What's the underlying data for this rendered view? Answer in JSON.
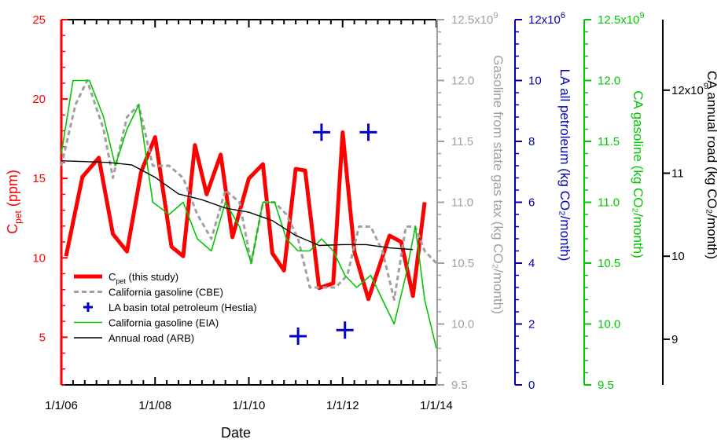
{
  "chart_data": {
    "type": "line",
    "xlabel": "Date",
    "x_ticks": [
      "1/1/06",
      "1/1/08",
      "1/1/10",
      "1/1/12",
      "1/1/14"
    ],
    "x_range": [
      2006.0,
      2014.0
    ],
    "axes": [
      {
        "id": "cpet",
        "label": "C",
        "label_sub": "pet",
        "label_suffix": " (ppm)",
        "color": "#ff0000",
        "range": [
          2.0,
          25.0
        ],
        "ticks": [
          "5",
          "10",
          "15",
          "20",
          "25"
        ],
        "tick_values": [
          5,
          10,
          15,
          20,
          25
        ]
      },
      {
        "id": "gas_tax",
        "label": "Gasoline from state gas tax (kg CO₂/month)",
        "color": "#a0a0a0",
        "range": [
          9.5,
          12.5
        ],
        "ticks": [
          "9.5",
          "10.0",
          "10.5",
          "11.0",
          "11.5",
          "12.0",
          "12.5x10"
        ],
        "tick_values": [
          9.5,
          10.0,
          10.5,
          11.0,
          11.5,
          12.0,
          12.5
        ],
        "exponent": "9"
      },
      {
        "id": "la",
        "label": "LA all petroleum (kg CO₂/month)",
        "color": "#0000b4",
        "range": [
          0,
          12
        ],
        "ticks": [
          "0",
          "2",
          "4",
          "6",
          "8",
          "10",
          "12x10"
        ],
        "tick_values": [
          0,
          2,
          4,
          6,
          8,
          10,
          12
        ],
        "exponent": "6"
      },
      {
        "id": "ca_gas",
        "label": "CA gasoline (kg CO₂/month)",
        "color": "#00c800",
        "range": [
          9.5,
          12.5
        ],
        "ticks": [
          "9.5",
          "10.0",
          "10.5",
          "11.0",
          "11.5",
          "12.0",
          "12.5x10"
        ],
        "tick_values": [
          9.5,
          10.0,
          10.5,
          11.0,
          11.5,
          12.0,
          12.5
        ],
        "exponent": "9"
      },
      {
        "id": "road",
        "label": "CA annual road (kg CO₂/month)",
        "color": "#000000",
        "range": [
          8.45,
          12.85
        ],
        "ticks": [
          "9",
          "10",
          "11",
          "12x10"
        ],
        "tick_values": [
          9,
          10,
          11,
          12
        ],
        "exponent": "9"
      }
    ],
    "series": [
      {
        "name": "C",
        "name_sub": "pet",
        "name_suffix": " (this study)",
        "axis": "cpet",
        "color": "#ff0000",
        "style": "thick",
        "x": [
          2006.1,
          2006.45,
          2006.8,
          2007.1,
          2007.4,
          2007.7,
          2008.0,
          2008.35,
          2008.6,
          2008.85,
          2009.1,
          2009.4,
          2009.65,
          2010.0,
          2010.3,
          2010.5,
          2010.75,
          2011.0,
          2011.2,
          2011.5,
          2011.8,
          2012.0,
          2012.25,
          2012.55,
          2013.0,
          2013.25,
          2013.5,
          2013.75
        ],
        "y": [
          10.1,
          15.1,
          16.3,
          11.5,
          10.4,
          15.4,
          17.6,
          10.7,
          10.1,
          17.1,
          14.0,
          16.5,
          11.3,
          15.0,
          15.9,
          10.3,
          9.2,
          15.6,
          15.5,
          8.1,
          8.4,
          17.9,
          10.4,
          7.4,
          11.4,
          11.0,
          7.6,
          13.5
        ]
      },
      {
        "name": "California gasoline (CBE)",
        "axis": "gas_tax",
        "color": "#a0a0a0",
        "style": "dashed",
        "x": [
          2006.0,
          2006.3,
          2006.55,
          2006.9,
          2007.1,
          2007.4,
          2007.65,
          2007.95,
          2008.3,
          2008.6,
          2008.9,
          2009.2,
          2009.5,
          2009.8,
          2010.05,
          2010.3,
          2010.55,
          2010.8,
          2011.05,
          2011.3,
          2011.6,
          2011.85,
          2012.1,
          2012.35,
          2012.6,
          2012.85,
          2013.1,
          2013.35,
          2013.55,
          2013.75,
          2014.0
        ],
        "y": [
          11.3,
          11.8,
          12.0,
          11.6,
          11.2,
          11.7,
          11.8,
          11.3,
          11.3,
          11.2,
          10.9,
          10.7,
          11.1,
          11.0,
          10.5,
          11.0,
          11.0,
          10.9,
          10.7,
          10.3,
          10.3,
          10.3,
          10.4,
          10.8,
          10.8,
          10.6,
          10.2,
          10.8,
          10.8,
          10.6,
          10.5
        ]
      },
      {
        "name": "LA basin total petroleum (Hestia)",
        "axis": "la",
        "color": "#0000cc",
        "style": "plus",
        "x": [
          2011.05,
          2011.55,
          2012.05,
          2012.55
        ],
        "y": [
          1.6,
          8.3,
          1.8,
          8.3
        ]
      },
      {
        "name": "California gasoline (EIA)",
        "axis": "ca_gas",
        "color": "#00c800",
        "style": "thin",
        "x": [
          2006.0,
          2006.25,
          2006.6,
          2006.9,
          2007.15,
          2007.4,
          2007.65,
          2007.95,
          2008.3,
          2008.6,
          2008.9,
          2009.2,
          2009.5,
          2009.8,
          2010.05,
          2010.3,
          2010.55,
          2010.8,
          2011.05,
          2011.3,
          2011.55,
          2011.8,
          2012.05,
          2012.3,
          2012.6,
          2012.85,
          2013.1,
          2013.35,
          2013.55,
          2013.75,
          2014.0
        ],
        "y": [
          11.4,
          12.0,
          12.0,
          11.7,
          11.3,
          11.6,
          11.8,
          11.0,
          10.9,
          11.0,
          10.7,
          10.6,
          11.0,
          10.8,
          10.5,
          11.0,
          11.0,
          10.7,
          10.6,
          10.6,
          10.7,
          10.6,
          10.4,
          10.3,
          10.4,
          10.2,
          10.0,
          10.4,
          10.8,
          10.2,
          9.8
        ]
      },
      {
        "name": "Annual road (ARB)",
        "axis": "road",
        "color": "#000000",
        "style": "line",
        "x": [
          2006.0,
          2007.0,
          2007.5,
          2008.0,
          2008.5,
          2009.0,
          2009.5,
          2010.0,
          2010.5,
          2011.0,
          2011.5,
          2012.0,
          2012.5,
          2013.0,
          2013.5
        ],
        "y": [
          11.15,
          11.13,
          11.1,
          10.95,
          10.75,
          10.68,
          10.58,
          10.53,
          10.43,
          10.25,
          10.13,
          10.14,
          10.14,
          10.1,
          10.08
        ]
      }
    ]
  }
}
